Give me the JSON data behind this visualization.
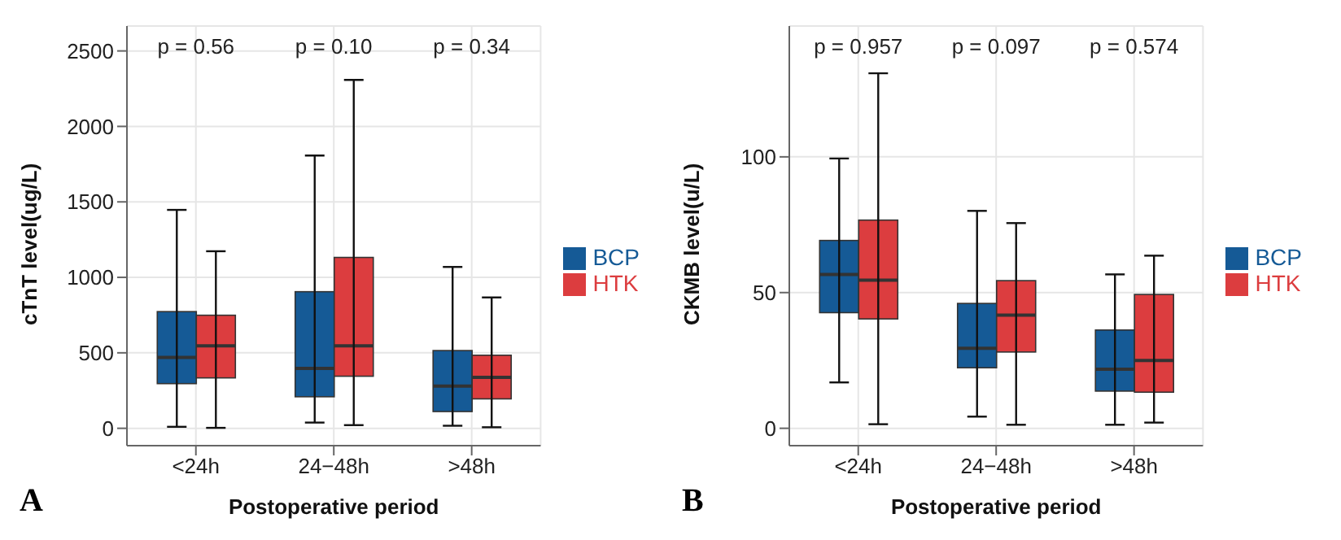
{
  "chart_data": [
    {
      "type": "box",
      "xlabel": "Postoperative period",
      "ylabel": "cTnT level(ug/L)",
      "categories": [
        "<24h",
        "24−48h",
        ">48h"
      ],
      "ylim": [
        -115,
        2665
      ],
      "yticks": [
        0,
        500,
        1000,
        1500,
        2000,
        2500
      ],
      "grid": true,
      "legend": "right",
      "series": [
        {
          "name": "BCP",
          "color": "#155a96",
          "boxes": [
            {
              "low": 10,
              "q1": 296,
              "median": 470,
              "q3": 773,
              "high": 1447
            },
            {
              "low": 38,
              "q1": 209,
              "median": 397,
              "q3": 905,
              "high": 1807
            },
            {
              "low": 17,
              "q1": 111,
              "median": 279,
              "q3": 515,
              "high": 1069
            }
          ]
        },
        {
          "name": "HTK",
          "color": "#dc3d3f",
          "boxes": [
            {
              "low": 3,
              "q1": 334,
              "median": 547,
              "q3": 749,
              "high": 1173
            },
            {
              "low": 21,
              "q1": 345,
              "median": 547,
              "q3": 1132,
              "high": 2308
            },
            {
              "low": 7,
              "q1": 195,
              "median": 338,
              "q3": 484,
              "high": 867
            }
          ]
        }
      ],
      "annotations": [
        "p = 0.56",
        "p = 0.10",
        "p = 0.34",
        "A"
      ]
    },
    {
      "type": "box",
      "xlabel": "Postoperative period",
      "ylabel": "CKMB level(u/L)",
      "categories": [
        "<24h",
        "24−48h",
        ">48h"
      ],
      "ylim": [
        -6.4,
        148.2
      ],
      "yticks": [
        0,
        50,
        100
      ],
      "grid": true,
      "legend": "right",
      "series": [
        {
          "name": "BCP",
          "color": "#155a96",
          "boxes": [
            {
              "low": 16.9,
              "q1": 42.6,
              "median": 56.7,
              "q3": 69.2,
              "high": 99.4
            },
            {
              "low": 4.3,
              "q1": 22.3,
              "median": 29.5,
              "q3": 46,
              "high": 80.1
            },
            {
              "low": 1.3,
              "q1": 13.7,
              "median": 21.8,
              "q3": 36.2,
              "high": 56.7
            }
          ]
        },
        {
          "name": "HTK",
          "color": "#dc3d3f",
          "boxes": [
            {
              "low": 1.5,
              "q1": 40.3,
              "median": 54.6,
              "q3": 76.7,
              "high": 130.8
            },
            {
              "low": 1.3,
              "q1": 28.1,
              "median": 41.7,
              "q3": 54.4,
              "high": 75.6
            },
            {
              "low": 2.1,
              "q1": 13.3,
              "median": 25,
              "q3": 49.3,
              "high": 63.6
            }
          ]
        }
      ],
      "annotations": [
        "p = 0.957",
        "p = 0.097",
        "p = 0.574",
        "B"
      ]
    }
  ]
}
